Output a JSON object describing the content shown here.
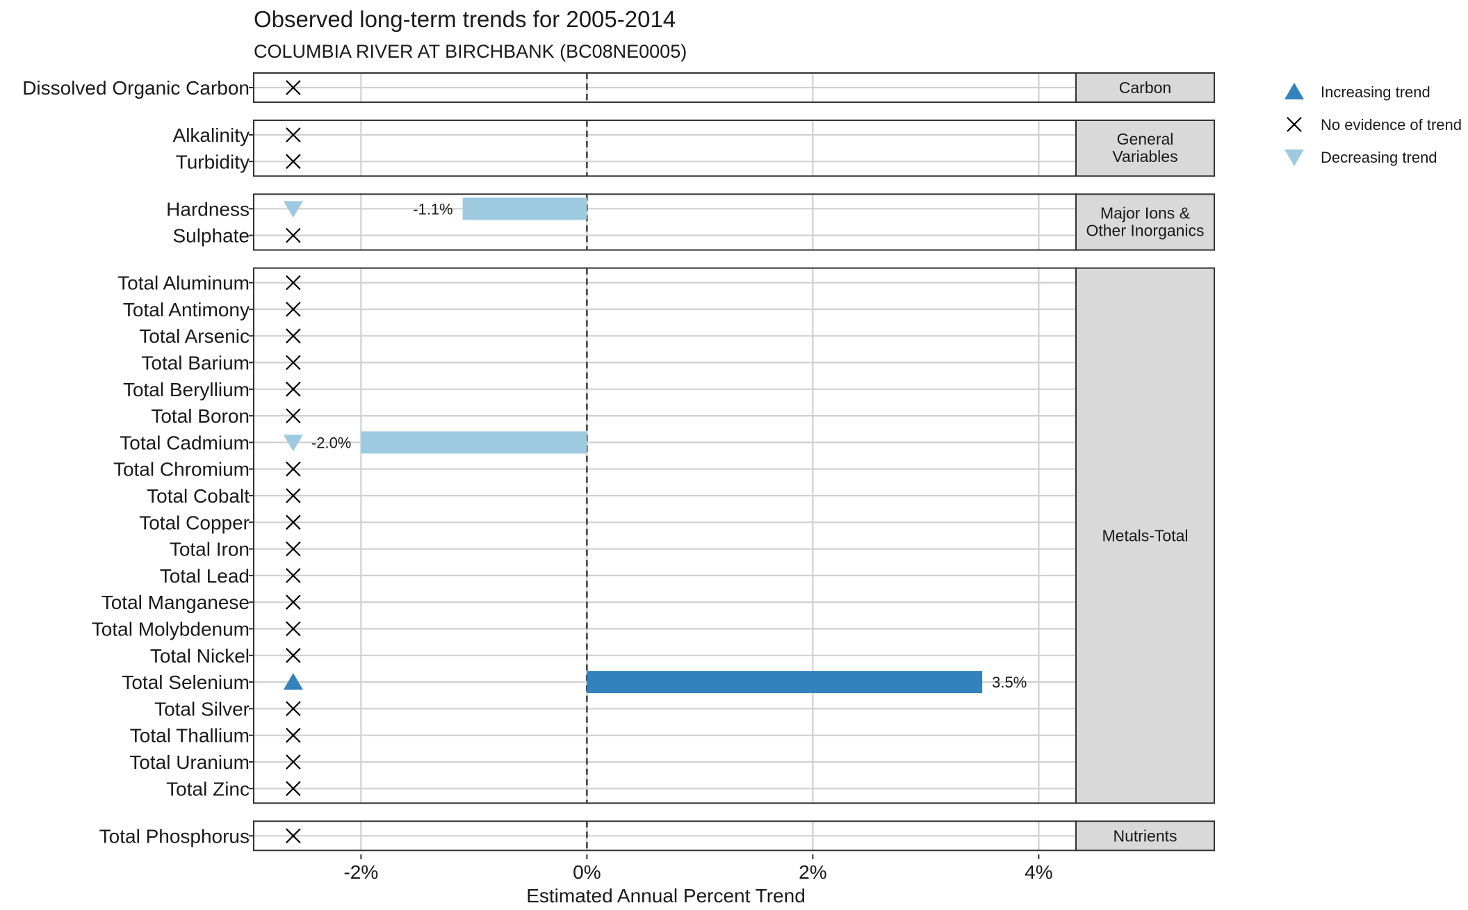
{
  "chart_data": {
    "type": "bar",
    "title": "Observed long-term trends for 2005-2014",
    "subtitle": "COLUMBIA RIVER AT BIRCHBANK (BC08NE0005)",
    "xlabel": "Estimated Annual Percent Trend",
    "xlim": [
      -2.95,
      4.33
    ],
    "xticks": [
      -2,
      0,
      2,
      4
    ],
    "xtick_labels": [
      "-2%",
      "0%",
      "2%",
      "4%"
    ],
    "grid": true,
    "legend_position": "right",
    "legend": [
      {
        "key": "increasing",
        "label": "Increasing trend",
        "symbol": "triangle-up",
        "color": "#3182bd"
      },
      {
        "key": "none",
        "label": "No evidence of trend",
        "symbol": "cross",
        "color": "#000000"
      },
      {
        "key": "decreasing",
        "label": "Decreasing trend",
        "symbol": "triangle-down",
        "color": "#9ecae1"
      }
    ],
    "colors": {
      "increasing": "#3182bd",
      "decreasing": "#9ecae1",
      "none": "#000000"
    },
    "facets": [
      {
        "label": "Carbon",
        "rows": [
          {
            "name": "Dissolved Organic Carbon",
            "trend": "none",
            "value": null
          }
        ]
      },
      {
        "label": "General Variables",
        "rows": [
          {
            "name": "Alkalinity",
            "trend": "none",
            "value": null
          },
          {
            "name": "Turbidity",
            "trend": "none",
            "value": null
          }
        ]
      },
      {
        "label": "Major Ions & Other Inorganics",
        "rows": [
          {
            "name": "Hardness",
            "trend": "decreasing",
            "value": -1.1,
            "value_label": "-1.1%"
          },
          {
            "name": "Sulphate",
            "trend": "none",
            "value": null
          }
        ]
      },
      {
        "label": "Metals-Total",
        "rows": [
          {
            "name": "Total Aluminum",
            "trend": "none",
            "value": null
          },
          {
            "name": "Total Antimony",
            "trend": "none",
            "value": null
          },
          {
            "name": "Total Arsenic",
            "trend": "none",
            "value": null
          },
          {
            "name": "Total Barium",
            "trend": "none",
            "value": null
          },
          {
            "name": "Total Beryllium",
            "trend": "none",
            "value": null
          },
          {
            "name": "Total Boron",
            "trend": "none",
            "value": null
          },
          {
            "name": "Total Cadmium",
            "trend": "decreasing",
            "value": -2.0,
            "value_label": "-2.0%"
          },
          {
            "name": "Total Chromium",
            "trend": "none",
            "value": null
          },
          {
            "name": "Total Cobalt",
            "trend": "none",
            "value": null
          },
          {
            "name": "Total Copper",
            "trend": "none",
            "value": null
          },
          {
            "name": "Total Iron",
            "trend": "none",
            "value": null
          },
          {
            "name": "Total Lead",
            "trend": "none",
            "value": null
          },
          {
            "name": "Total Manganese",
            "trend": "none",
            "value": null
          },
          {
            "name": "Total Molybdenum",
            "trend": "none",
            "value": null
          },
          {
            "name": "Total Nickel",
            "trend": "none",
            "value": null
          },
          {
            "name": "Total Selenium",
            "trend": "increasing",
            "value": 3.5,
            "value_label": "3.5%"
          },
          {
            "name": "Total Silver",
            "trend": "none",
            "value": null
          },
          {
            "name": "Total Thallium",
            "trend": "none",
            "value": null
          },
          {
            "name": "Total Uranium",
            "trend": "none",
            "value": null
          },
          {
            "name": "Total Zinc",
            "trend": "none",
            "value": null
          }
        ]
      },
      {
        "label": "Nutrients",
        "rows": [
          {
            "name": "Total Phosphorus",
            "trend": "none",
            "value": null
          }
        ]
      }
    ]
  }
}
